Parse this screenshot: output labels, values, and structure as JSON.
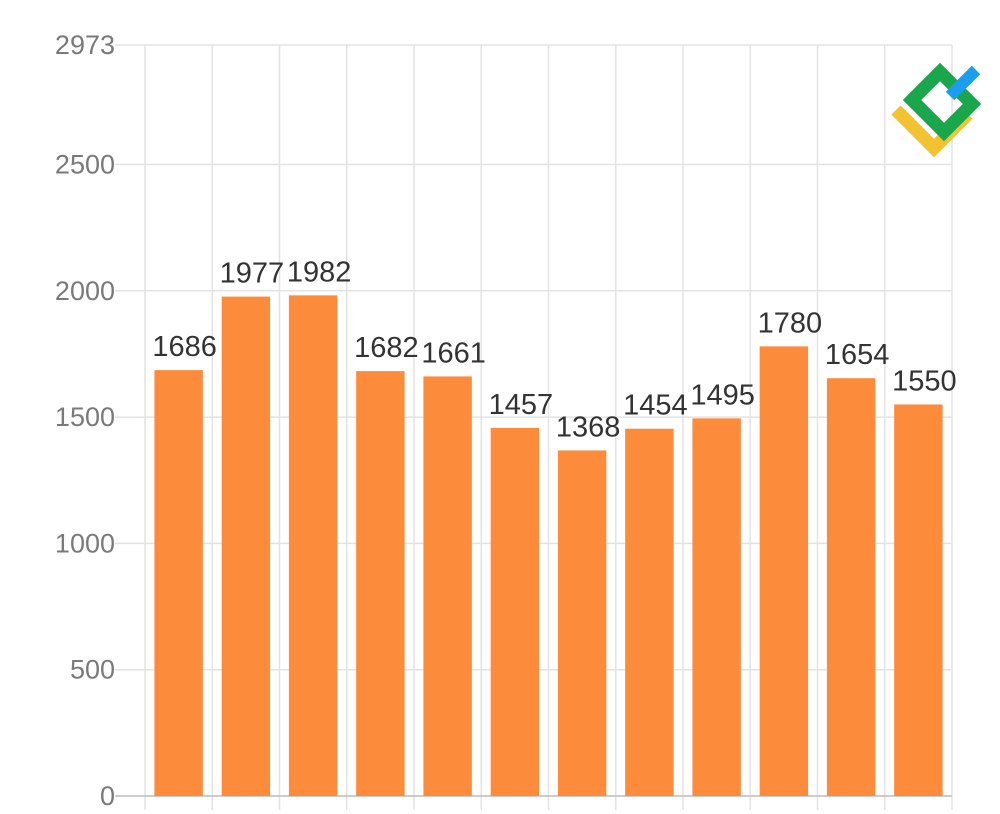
{
  "chart_data": {
    "type": "bar",
    "title": "",
    "xlabel": "",
    "ylabel": "",
    "categories": [
      "",
      "",
      "",
      "",
      "",
      "",
      "",
      "",
      "",
      "",
      "",
      ""
    ],
    "values": [
      1686,
      1977,
      1982,
      1682,
      1661,
      1457,
      1368,
      1454,
      1495,
      1780,
      1654,
      1550
    ],
    "value_labels": [
      "1686",
      "1977",
      "1982",
      "1682",
      "1661",
      "1457",
      "1368",
      "1454",
      "1495",
      "1780",
      "1654",
      "1550"
    ],
    "ylim": [
      0,
      2973
    ],
    "yticks": [
      0,
      500,
      1000,
      1500,
      2000,
      2500,
      2973
    ],
    "ytick_labels": [
      "0",
      "500",
      "1000",
      "1500",
      "2000",
      "2500",
      "2973"
    ],
    "grid": true,
    "bar_color": "#fd8b3c",
    "grid_color": "#e3e3e3",
    "tick_label_color": "#7a7a7a",
    "logo": {
      "icon": "brand-logo-icon",
      "colors": [
        "#1aa64b",
        "#f2c230",
        "#1a9ef0"
      ]
    }
  }
}
